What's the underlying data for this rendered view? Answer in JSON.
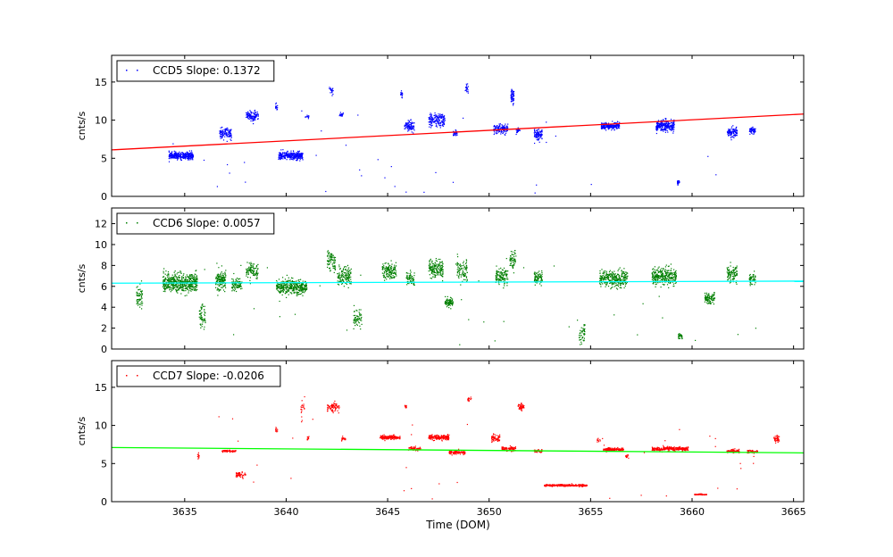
{
  "figure": {
    "xlabel": "Time (DOM)"
  },
  "chart_data": [
    {
      "type": "scatter",
      "panel": "top",
      "legend": "CCD5 Slope: 0.1372",
      "legend_position": "top-left",
      "ylabel": "cnts/s",
      "xlim": [
        3631.4,
        3665.5
      ],
      "ylim": [
        0,
        18.5
      ],
      "x_ticks": [
        3635,
        3640,
        3645,
        3650,
        3655,
        3660,
        3665
      ],
      "show_x_tick_labels": false,
      "y_ticks": [
        0,
        5,
        10,
        15
      ],
      "point_color": "#0000ff",
      "fit_line": {
        "color": "#ff0000",
        "x": [
          3631.4,
          3665.5
        ],
        "y": [
          6.1,
          10.8
        ]
      },
      "clusters": [
        {
          "x": [
            3634.2,
            3635.4
          ],
          "y": 5.4,
          "spread": 0.45,
          "n": 320
        },
        {
          "x": [
            3636.7,
            3637.3
          ],
          "y": 8.3,
          "spread": 0.7,
          "n": 110
        },
        {
          "x": [
            3638.0,
            3638.6
          ],
          "y": 10.6,
          "spread": 0.7,
          "n": 110
        },
        {
          "x": [
            3639.45,
            3639.55
          ],
          "y": 11.8,
          "spread": 0.5,
          "n": 14
        },
        {
          "x": [
            3639.6,
            3640.8
          ],
          "y": 5.4,
          "spread": 0.5,
          "n": 300
        },
        {
          "x": [
            3640.9,
            3641.1
          ],
          "y": 10.5,
          "spread": 0.25,
          "n": 12
        },
        {
          "x": [
            3642.1,
            3642.3
          ],
          "y": 14.0,
          "spread": 0.5,
          "n": 20
        },
        {
          "x": [
            3642.6,
            3642.8
          ],
          "y": 10.8,
          "spread": 0.3,
          "n": 18
        },
        {
          "x": [
            3645.6,
            3645.7
          ],
          "y": 13.5,
          "spread": 0.5,
          "n": 18
        },
        {
          "x": [
            3645.8,
            3646.3
          ],
          "y": 9.3,
          "spread": 0.7,
          "n": 90
        },
        {
          "x": [
            3647.0,
            3647.8
          ],
          "y": 10.0,
          "spread": 0.9,
          "n": 170
        },
        {
          "x": [
            3648.2,
            3648.4
          ],
          "y": 8.3,
          "spread": 0.4,
          "n": 25
        },
        {
          "x": [
            3648.8,
            3648.95
          ],
          "y": 14.3,
          "spread": 0.6,
          "n": 22
        },
        {
          "x": [
            3650.2,
            3650.9
          ],
          "y": 8.9,
          "spread": 0.6,
          "n": 130
        },
        {
          "x": [
            3651.05,
            3651.2
          ],
          "y": 13.2,
          "spread": 0.9,
          "n": 55
        },
        {
          "x": [
            3651.3,
            3651.5
          ],
          "y": 8.7,
          "spread": 0.35,
          "n": 20
        },
        {
          "x": [
            3652.2,
            3652.6
          ],
          "y": 8.2,
          "spread": 0.7,
          "n": 90
        },
        {
          "x": [
            3655.5,
            3656.4
          ],
          "y": 9.3,
          "spread": 0.45,
          "n": 200
        },
        {
          "x": [
            3658.2,
            3659.1
          ],
          "y": 9.3,
          "spread": 0.8,
          "n": 260
        },
        {
          "x": [
            3659.25,
            3659.35
          ],
          "y": 1.8,
          "spread": 0.35,
          "n": 22
        },
        {
          "x": [
            3661.7,
            3662.2
          ],
          "y": 8.4,
          "spread": 0.6,
          "n": 110
        },
        {
          "x": [
            3662.8,
            3663.1
          ],
          "y": 8.7,
          "spread": 0.5,
          "n": 60
        }
      ]
    },
    {
      "type": "scatter",
      "panel": "middle",
      "legend": "CCD6 Slope: 0.0057",
      "legend_position": "top-left",
      "ylabel": "cnts/s",
      "xlim": [
        3631.4,
        3665.5
      ],
      "ylim": [
        0,
        13.5
      ],
      "x_ticks": [
        3635,
        3640,
        3645,
        3650,
        3655,
        3660,
        3665
      ],
      "show_x_tick_labels": false,
      "y_ticks": [
        0,
        2,
        4,
        6,
        8,
        10,
        12
      ],
      "point_color": "#007f00",
      "fit_line": {
        "color": "#00ffff",
        "x": [
          3631.4,
          3665.5
        ],
        "y": [
          6.3,
          6.5
        ]
      },
      "clusters": [
        {
          "x": [
            3632.6,
            3632.9
          ],
          "y": 5.0,
          "spread": 1.3,
          "n": 60
        },
        {
          "x": [
            3633.9,
            3635.6
          ],
          "y": 6.4,
          "spread": 0.9,
          "n": 520
        },
        {
          "x": [
            3635.7,
            3636.0
          ],
          "y": 3.2,
          "spread": 1.0,
          "n": 60
        },
        {
          "x": [
            3636.5,
            3637.0
          ],
          "y": 6.6,
          "spread": 1.0,
          "n": 140
        },
        {
          "x": [
            3637.3,
            3637.8
          ],
          "y": 6.2,
          "spread": 0.6,
          "n": 90
        },
        {
          "x": [
            3638.0,
            3638.6
          ],
          "y": 7.5,
          "spread": 0.7,
          "n": 100
        },
        {
          "x": [
            3639.5,
            3641.0
          ],
          "y": 6.0,
          "spread": 0.7,
          "n": 380
        },
        {
          "x": [
            3642.0,
            3642.4
          ],
          "y": 8.5,
          "spread": 1.0,
          "n": 80
        },
        {
          "x": [
            3642.5,
            3643.2
          ],
          "y": 7.0,
          "spread": 0.8,
          "n": 140
        },
        {
          "x": [
            3643.3,
            3643.7
          ],
          "y": 3.0,
          "spread": 0.9,
          "n": 60
        },
        {
          "x": [
            3644.7,
            3645.4
          ],
          "y": 7.5,
          "spread": 0.7,
          "n": 150
        },
        {
          "x": [
            3645.9,
            3646.3
          ],
          "y": 6.8,
          "spread": 0.6,
          "n": 70
        },
        {
          "x": [
            3647.0,
            3647.7
          ],
          "y": 7.7,
          "spread": 0.8,
          "n": 160
        },
        {
          "x": [
            3647.8,
            3648.2
          ],
          "y": 4.5,
          "spread": 0.4,
          "n": 80
        },
        {
          "x": [
            3648.4,
            3648.9
          ],
          "y": 7.5,
          "spread": 1.3,
          "n": 90
        },
        {
          "x": [
            3650.3,
            3650.9
          ],
          "y": 7.0,
          "spread": 0.8,
          "n": 120
        },
        {
          "x": [
            3651.0,
            3651.3
          ],
          "y": 8.6,
          "spread": 0.9,
          "n": 60
        },
        {
          "x": [
            3652.2,
            3652.6
          ],
          "y": 6.8,
          "spread": 0.6,
          "n": 80
        },
        {
          "x": [
            3654.4,
            3654.7
          ],
          "y": 1.5,
          "spread": 0.9,
          "n": 50
        },
        {
          "x": [
            3655.4,
            3656.8
          ],
          "y": 6.8,
          "spread": 0.8,
          "n": 300
        },
        {
          "x": [
            3658.0,
            3659.2
          ],
          "y": 7.0,
          "spread": 0.8,
          "n": 300
        },
        {
          "x": [
            3659.3,
            3659.5
          ],
          "y": 1.3,
          "spread": 0.25,
          "n": 30
        },
        {
          "x": [
            3660.6,
            3661.1
          ],
          "y": 4.9,
          "spread": 0.5,
          "n": 90
        },
        {
          "x": [
            3661.7,
            3662.2
          ],
          "y": 7.2,
          "spread": 0.8,
          "n": 100
        },
        {
          "x": [
            3662.8,
            3663.1
          ],
          "y": 6.8,
          "spread": 0.6,
          "n": 50
        }
      ]
    },
    {
      "type": "scatter",
      "panel": "bottom",
      "legend": "CCD7 Slope: -0.0206",
      "legend_position": "top-left",
      "ylabel": "cnts/s",
      "xlabel": "Time (DOM)",
      "xlim": [
        3631.4,
        3665.5
      ],
      "ylim": [
        0,
        18.5
      ],
      "x_ticks": [
        3635,
        3640,
        3645,
        3650,
        3655,
        3660,
        3665
      ],
      "show_x_tick_labels": true,
      "y_ticks": [
        0,
        5,
        10,
        15
      ],
      "point_color": "#ff0000",
      "fit_line": {
        "color": "#00ff00",
        "x": [
          3631.4,
          3665.5
        ],
        "y": [
          7.1,
          6.4
        ]
      },
      "clusters": [
        {
          "x": [
            3635.6,
            3635.7
          ],
          "y": 6.0,
          "spread": 0.3,
          "n": 12
        },
        {
          "x": [
            3636.8,
            3637.5
          ],
          "y": 6.7,
          "spread": 0.15,
          "n": 70
        },
        {
          "x": [
            3637.5,
            3638.0
          ],
          "y": 3.6,
          "spread": 0.3,
          "n": 50
        },
        {
          "x": [
            3639.45,
            3639.55
          ],
          "y": 9.5,
          "spread": 0.3,
          "n": 10
        },
        {
          "x": [
            3640.7,
            3640.9
          ],
          "y": 12.5,
          "spread": 1.5,
          "n": 20
        },
        {
          "x": [
            3641.0,
            3641.1
          ],
          "y": 8.4,
          "spread": 0.3,
          "n": 10
        },
        {
          "x": [
            3642.0,
            3642.6
          ],
          "y": 12.5,
          "spread": 0.6,
          "n": 80
        },
        {
          "x": [
            3642.7,
            3642.9
          ],
          "y": 8.3,
          "spread": 0.3,
          "n": 20
        },
        {
          "x": [
            3644.6,
            3645.6
          ],
          "y": 8.5,
          "spread": 0.25,
          "n": 180
        },
        {
          "x": [
            3645.8,
            3645.9
          ],
          "y": 12.6,
          "spread": 0.3,
          "n": 12
        },
        {
          "x": [
            3646.0,
            3646.6
          ],
          "y": 7.0,
          "spread": 0.25,
          "n": 60
        },
        {
          "x": [
            3647.0,
            3648.0
          ],
          "y": 8.5,
          "spread": 0.3,
          "n": 180
        },
        {
          "x": [
            3648.0,
            3648.8
          ],
          "y": 6.5,
          "spread": 0.25,
          "n": 90
        },
        {
          "x": [
            3648.9,
            3649.1
          ],
          "y": 13.5,
          "spread": 0.3,
          "n": 15
        },
        {
          "x": [
            3650.1,
            3650.5
          ],
          "y": 8.4,
          "spread": 0.5,
          "n": 60
        },
        {
          "x": [
            3650.6,
            3651.3
          ],
          "y": 7.0,
          "spread": 0.3,
          "n": 90
        },
        {
          "x": [
            3651.4,
            3651.7
          ],
          "y": 12.5,
          "spread": 0.4,
          "n": 50
        },
        {
          "x": [
            3652.2,
            3652.6
          ],
          "y": 6.7,
          "spread": 0.2,
          "n": 40
        },
        {
          "x": [
            3652.7,
            3654.8
          ],
          "y": 2.2,
          "spread": 0.12,
          "n": 320
        },
        {
          "x": [
            3655.3,
            3655.45
          ],
          "y": 8.1,
          "spread": 0.3,
          "n": 10
        },
        {
          "x": [
            3655.6,
            3656.6
          ],
          "y": 6.9,
          "spread": 0.2,
          "n": 160
        },
        {
          "x": [
            3656.7,
            3656.85
          ],
          "y": 6.0,
          "spread": 0.3,
          "n": 12
        },
        {
          "x": [
            3658.0,
            3659.8
          ],
          "y": 7.0,
          "spread": 0.25,
          "n": 280
        },
        {
          "x": [
            3660.1,
            3660.7
          ],
          "y": 1.0,
          "spread": 0.08,
          "n": 60
        },
        {
          "x": [
            3661.7,
            3662.3
          ],
          "y": 6.7,
          "spread": 0.2,
          "n": 80
        },
        {
          "x": [
            3662.7,
            3663.2
          ],
          "y": 6.6,
          "spread": 0.2,
          "n": 60
        },
        {
          "x": [
            3664.0,
            3664.3
          ],
          "y": 8.3,
          "spread": 0.5,
          "n": 40
        }
      ]
    }
  ]
}
